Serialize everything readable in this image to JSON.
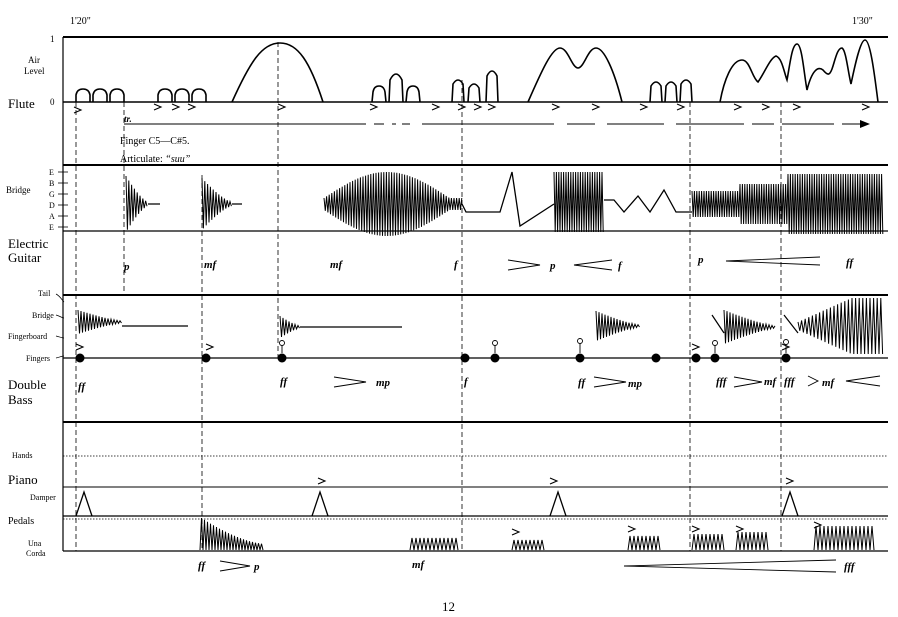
{
  "time": {
    "start": "1'20\"",
    "end": "1'30\""
  },
  "flute": {
    "name": "Flute",
    "air_level_label": [
      "Air",
      "Level"
    ],
    "axis_top": "1",
    "axis_bottom": "0",
    "trill": "tr.",
    "fingering": "Finger C5—C#5.",
    "articulate": "Articulate: “suu”"
  },
  "guitar": {
    "name_lines": [
      "Electric",
      "Guitar"
    ],
    "bridge_label": "Bridge",
    "strings": [
      "E",
      "B",
      "G",
      "D",
      "A",
      "E"
    ],
    "dynamics": [
      "p",
      "mf",
      "mf",
      "f",
      "p",
      "f",
      "p",
      "ff"
    ]
  },
  "bass": {
    "name_lines": [
      "Double",
      "Bass"
    ],
    "labels": [
      "Tail",
      "Bridge",
      "Fingerboard",
      "Fingers"
    ],
    "dynamics": [
      "ff",
      "ff",
      "mp",
      "f",
      "ff",
      "mp",
      "fff",
      "mf",
      "fff",
      "mf"
    ]
  },
  "piano": {
    "name": "Piano",
    "labels": [
      "Hands",
      "Damper",
      "Pedals",
      "Una",
      "Corda"
    ],
    "dynamics": [
      "ff",
      "p",
      "mf",
      "fff"
    ]
  },
  "page_number": "12"
}
